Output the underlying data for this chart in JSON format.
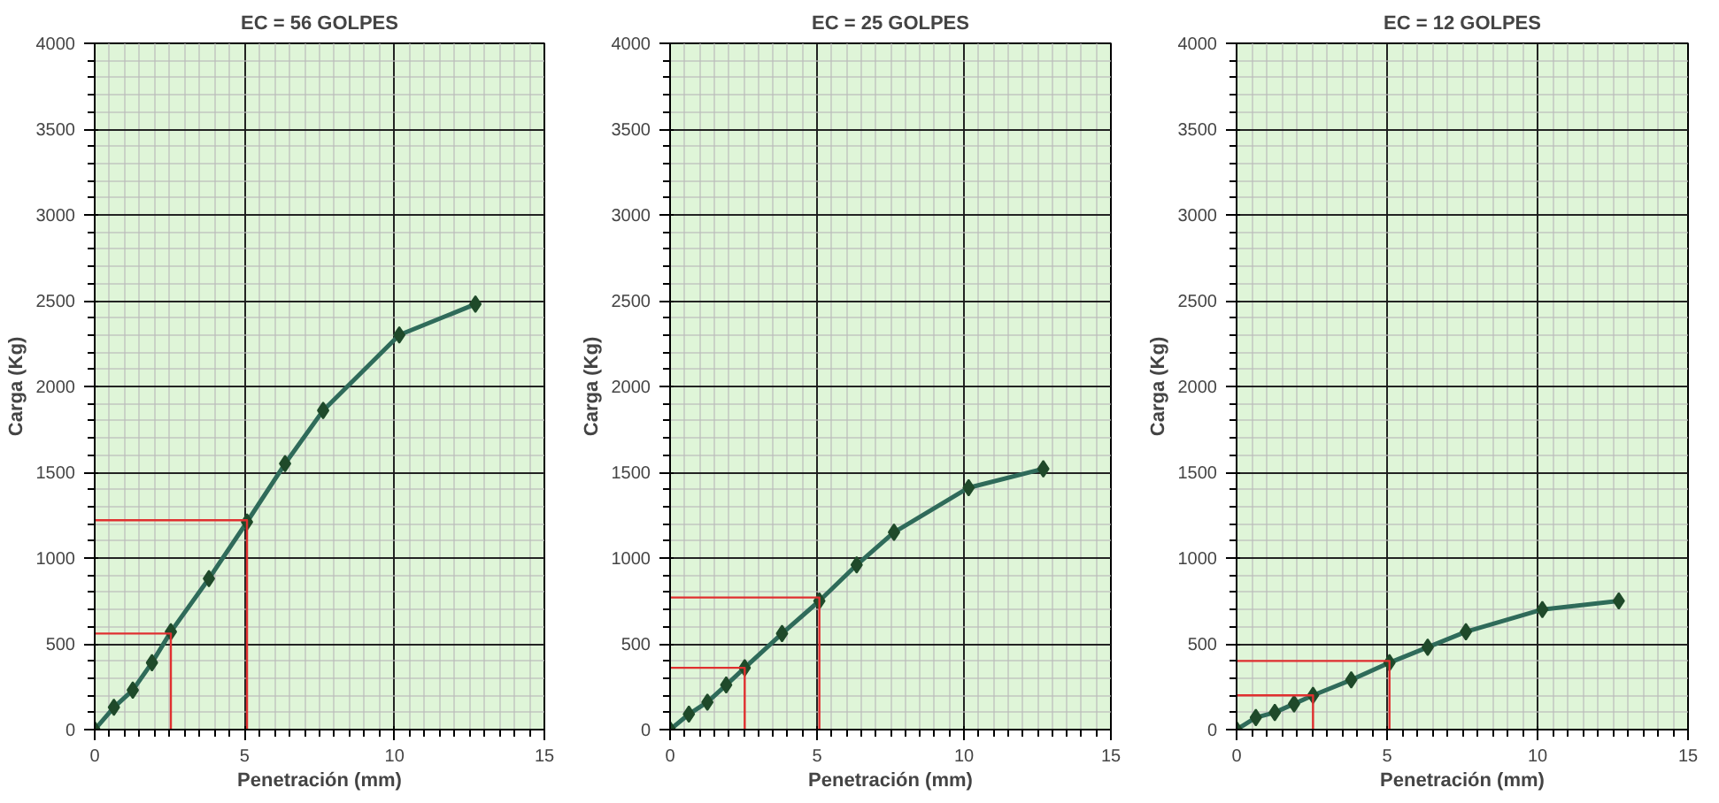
{
  "chart_data": [
    {
      "type": "line",
      "title": "EC = 56 GOLPES",
      "xlabel": "Penetración (mm)",
      "ylabel": "Carga (Kg)",
      "xlim": [
        0,
        15
      ],
      "xticks": [
        0,
        5,
        10,
        15
      ],
      "ylim": [
        0,
        4000
      ],
      "yticks": [
        0,
        500,
        1000,
        1500,
        2000,
        2500,
        3000,
        3500,
        4000
      ],
      "grid": true,
      "marker": "diamond",
      "x": [
        0,
        0.64,
        1.27,
        1.91,
        2.54,
        3.81,
        5.08,
        6.35,
        7.62,
        10.16,
        12.7
      ],
      "series": [
        {
          "color": "#2f6b5a",
          "values": [
            0,
            130,
            230,
            390,
            570,
            880,
            1210,
            1550,
            1860,
            2300,
            2480
          ]
        },
        {
          "color": "#e03030",
          "marker": "none",
          "x": [
            0,
            2.54,
            2.54
          ],
          "values": [
            560,
            560,
            0
          ]
        },
        {
          "color": "#e03030",
          "marker": "none",
          "x": [
            0,
            5.08,
            5.08
          ],
          "values": [
            1220,
            1220,
            0
          ]
        }
      ]
    },
    {
      "type": "line",
      "title": "EC = 25 GOLPES",
      "xlabel": "Penetración (mm)",
      "ylabel": "Carga (Kg)",
      "xlim": [
        0,
        15
      ],
      "xticks": [
        0,
        5,
        10,
        15
      ],
      "ylim": [
        0,
        4000
      ],
      "yticks": [
        0,
        500,
        1000,
        1500,
        2000,
        2500,
        3000,
        3500,
        4000
      ],
      "grid": true,
      "marker": "diamond",
      "x": [
        0,
        0.64,
        1.27,
        1.91,
        2.54,
        3.81,
        5.08,
        6.35,
        7.62,
        10.16,
        12.7
      ],
      "series": [
        {
          "color": "#2f6b5a",
          "values": [
            0,
            90,
            160,
            260,
            360,
            560,
            750,
            960,
            1150,
            1410,
            1520
          ]
        },
        {
          "color": "#e03030",
          "marker": "none",
          "x": [
            0,
            2.54,
            2.54
          ],
          "values": [
            360,
            360,
            0
          ]
        },
        {
          "color": "#e03030",
          "marker": "none",
          "x": [
            0,
            5.08,
            5.08
          ],
          "values": [
            770,
            770,
            0
          ]
        }
      ]
    },
    {
      "type": "line",
      "title": "EC = 12 GOLPES",
      "xlabel": "Penetración (mm)",
      "ylabel": "Carga (Kg)",
      "xlim": [
        0,
        15
      ],
      "xticks": [
        0,
        5,
        10,
        15
      ],
      "ylim": [
        0,
        4000
      ],
      "yticks": [
        0,
        500,
        1000,
        1500,
        2000,
        2500,
        3000,
        3500,
        4000
      ],
      "grid": true,
      "marker": "diamond",
      "x": [
        0,
        0.64,
        1.27,
        1.91,
        2.54,
        3.81,
        5.08,
        6.35,
        7.62,
        10.16,
        12.7
      ],
      "series": [
        {
          "color": "#2f6b5a",
          "values": [
            0,
            70,
            100,
            150,
            200,
            290,
            390,
            480,
            570,
            700,
            750
          ]
        },
        {
          "color": "#e03030",
          "marker": "none",
          "x": [
            0,
            2.54,
            2.54
          ],
          "values": [
            200,
            200,
            0
          ]
        },
        {
          "color": "#e03030",
          "marker": "none",
          "x": [
            0,
            5.08,
            5.08
          ],
          "values": [
            400,
            400,
            0
          ]
        }
      ]
    }
  ]
}
